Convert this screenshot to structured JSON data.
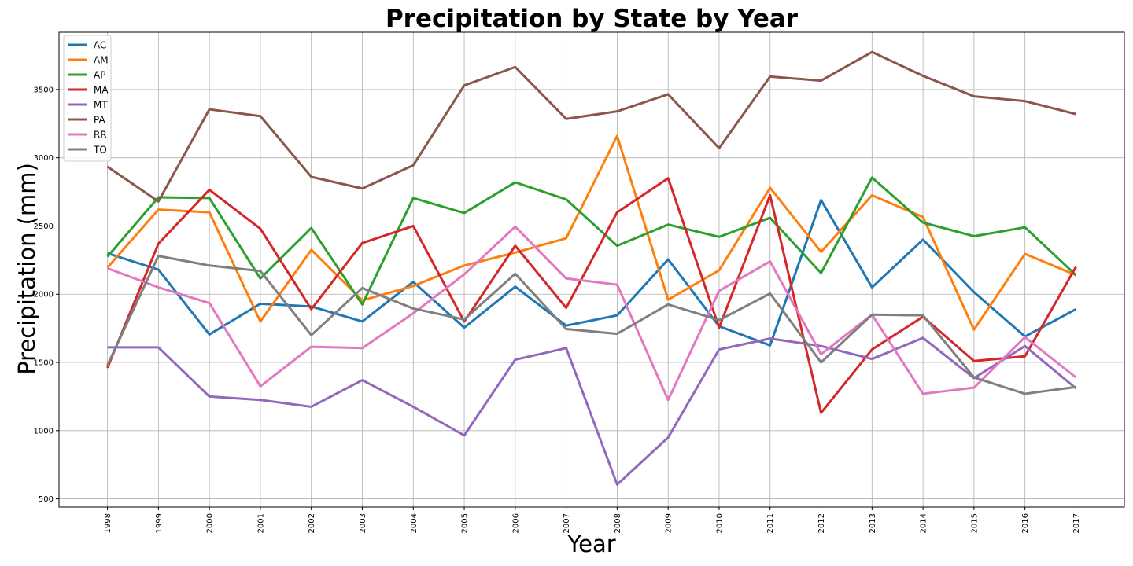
{
  "chart_data": {
    "type": "line",
    "title": "Precipitation by State by Year",
    "xlabel": "Year",
    "ylabel": "Precipitation (mm)",
    "x": [
      "1998",
      "1999",
      "2000",
      "2001",
      "2002",
      "2003",
      "2004",
      "2005",
      "2006",
      "2007",
      "2008",
      "2009",
      "2010",
      "2011",
      "2012",
      "2013",
      "2014",
      "2015",
      "2016",
      "2017"
    ],
    "yticks": [
      500,
      1000,
      1500,
      2000,
      2500,
      3000,
      3500
    ],
    "ylim": [
      440,
      3920
    ],
    "xlim": [
      1997.05,
      2017.95
    ],
    "grid": true,
    "legend_position": "upper-left",
    "series": [
      {
        "name": "AC",
        "color": "#1f77b4",
        "values": [
          2300,
          2180,
          1705,
          1930,
          1910,
          1800,
          2090,
          1755,
          2055,
          1770,
          1845,
          2255,
          1765,
          1625,
          2690,
          2050,
          2400,
          2015,
          1690,
          1890
        ]
      },
      {
        "name": "AM",
        "color": "#ff7f0e",
        "values": [
          2195,
          2620,
          2600,
          1800,
          2325,
          1955,
          2060,
          2210,
          2305,
          2410,
          3160,
          1960,
          2175,
          2780,
          2310,
          2725,
          2565,
          1740,
          2295,
          2140
        ]
      },
      {
        "name": "AP",
        "color": "#2ca02c",
        "values": [
          2275,
          2710,
          2705,
          2115,
          2485,
          1925,
          2705,
          2595,
          2820,
          2695,
          2355,
          2510,
          2420,
          2560,
          2155,
          2855,
          2525,
          2425,
          2490,
          2140
        ]
      },
      {
        "name": "MA",
        "color": "#d62728",
        "values": [
          1460,
          2370,
          2765,
          2480,
          1890,
          2375,
          2500,
          1800,
          2355,
          1900,
          2600,
          2850,
          1755,
          2725,
          1130,
          1595,
          1835,
          1510,
          1545,
          2200
        ]
      },
      {
        "name": "MT",
        "color": "#9467bd",
        "values": [
          1610,
          1610,
          1250,
          1225,
          1175,
          1370,
          1175,
          965,
          1520,
          1605,
          605,
          950,
          1595,
          1675,
          1620,
          1525,
          1680,
          1385,
          1620,
          1310
        ]
      },
      {
        "name": "PA",
        "color": "#8c564b",
        "values": [
          2935,
          2680,
          3355,
          3305,
          2860,
          2775,
          2945,
          3530,
          3665,
          3285,
          3340,
          3465,
          3070,
          3595,
          3565,
          3775,
          3600,
          3450,
          3415,
          3320
        ]
      },
      {
        "name": "RR",
        "color": "#e377c2",
        "values": [
          2190,
          2050,
          1935,
          1325,
          1615,
          1605,
          1860,
          2145,
          2495,
          2115,
          2070,
          1225,
          2025,
          2240,
          1560,
          1850,
          1270,
          1315,
          1685,
          1390
        ]
      },
      {
        "name": "TO",
        "color": "#7f7f7f",
        "values": [
          1480,
          2280,
          2210,
          2170,
          1700,
          2045,
          1895,
          1815,
          2150,
          1745,
          1710,
          1925,
          1810,
          2005,
          1500,
          1850,
          1845,
          1390,
          1270,
          1320
        ]
      }
    ]
  }
}
